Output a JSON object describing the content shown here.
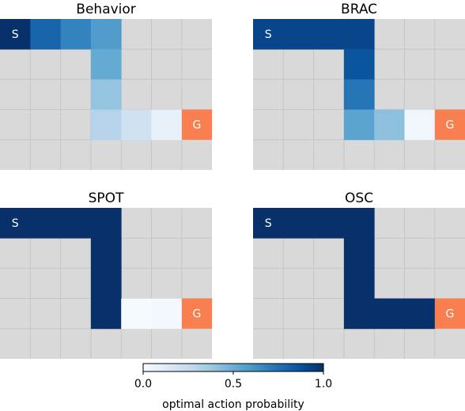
{
  "chart_data": {
    "type": "heatmap",
    "grid_rows": 5,
    "grid_cols": 7,
    "empty_color": "#d9d9d9",
    "goal_color": "#fa7f50",
    "panels": [
      {
        "title": "Behavior",
        "start": {
          "row": 0,
          "col": 0,
          "label": "S"
        },
        "goal": {
          "row": 3,
          "col": 6,
          "label": "G"
        },
        "cells": [
          {
            "row": 0,
            "col": 0,
            "value": 1.0
          },
          {
            "row": 0,
            "col": 1,
            "value": 0.8
          },
          {
            "row": 0,
            "col": 2,
            "value": 0.68
          },
          {
            "row": 0,
            "col": 3,
            "value": 0.58
          },
          {
            "row": 1,
            "col": 3,
            "value": 0.52
          },
          {
            "row": 2,
            "col": 3,
            "value": 0.4
          },
          {
            "row": 3,
            "col": 3,
            "value": 0.3
          },
          {
            "row": 3,
            "col": 4,
            "value": 0.2
          },
          {
            "row": 3,
            "col": 5,
            "value": 0.08
          }
        ]
      },
      {
        "title": "BRAC",
        "start": {
          "row": 0,
          "col": 0,
          "label": "S"
        },
        "goal": {
          "row": 3,
          "col": 6,
          "label": "G"
        },
        "cells": [
          {
            "row": 0,
            "col": 0,
            "value": 0.92
          },
          {
            "row": 0,
            "col": 1,
            "value": 0.92
          },
          {
            "row": 0,
            "col": 2,
            "value": 0.92
          },
          {
            "row": 0,
            "col": 3,
            "value": 0.92
          },
          {
            "row": 1,
            "col": 3,
            "value": 0.86
          },
          {
            "row": 2,
            "col": 3,
            "value": 0.74
          },
          {
            "row": 3,
            "col": 3,
            "value": 0.55
          },
          {
            "row": 3,
            "col": 4,
            "value": 0.42
          },
          {
            "row": 3,
            "col": 5,
            "value": 0.04
          }
        ]
      },
      {
        "title": "SPOT",
        "start": {
          "row": 0,
          "col": 0,
          "label": "S"
        },
        "goal": {
          "row": 3,
          "col": 6,
          "label": "G"
        },
        "cells": [
          {
            "row": 0,
            "col": 0,
            "value": 1.0
          },
          {
            "row": 0,
            "col": 1,
            "value": 1.0
          },
          {
            "row": 0,
            "col": 2,
            "value": 1.0
          },
          {
            "row": 0,
            "col": 3,
            "value": 1.0
          },
          {
            "row": 1,
            "col": 3,
            "value": 1.0
          },
          {
            "row": 2,
            "col": 3,
            "value": 1.0
          },
          {
            "row": 3,
            "col": 3,
            "value": 1.0
          },
          {
            "row": 3,
            "col": 4,
            "value": 0.01
          },
          {
            "row": 3,
            "col": 5,
            "value": 0.02
          }
        ]
      },
      {
        "title": "OSC",
        "start": {
          "row": 0,
          "col": 0,
          "label": "S"
        },
        "goal": {
          "row": 3,
          "col": 6,
          "label": "G"
        },
        "cells": [
          {
            "row": 0,
            "col": 0,
            "value": 1.0
          },
          {
            "row": 0,
            "col": 1,
            "value": 1.0
          },
          {
            "row": 0,
            "col": 2,
            "value": 1.0
          },
          {
            "row": 0,
            "col": 3,
            "value": 1.0
          },
          {
            "row": 1,
            "col": 3,
            "value": 1.0
          },
          {
            "row": 2,
            "col": 3,
            "value": 1.0
          },
          {
            "row": 3,
            "col": 3,
            "value": 1.0
          },
          {
            "row": 3,
            "col": 4,
            "value": 1.0
          },
          {
            "row": 3,
            "col": 5,
            "value": 1.0
          }
        ]
      }
    ],
    "colorbar": {
      "label": "optimal action probability",
      "range": [
        0,
        1
      ],
      "ticks": [
        {
          "value": 0.0,
          "label": "0.0"
        },
        {
          "value": 0.5,
          "label": "0.5"
        },
        {
          "value": 1.0,
          "label": "1.0"
        }
      ]
    }
  }
}
